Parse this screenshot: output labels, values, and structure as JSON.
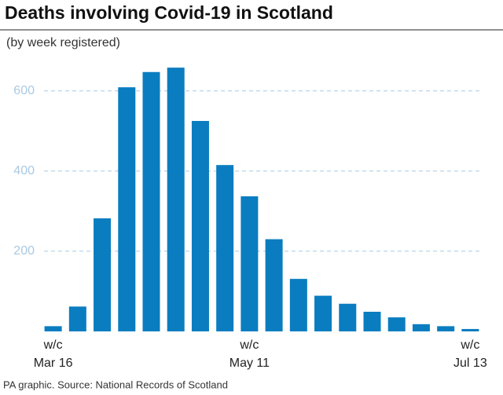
{
  "chart_data": {
    "type": "bar",
    "title": "Deaths involving Covid-19 in Scotland",
    "subtitle": "(by week registered)",
    "source": "PA graphic. Source: National Records of Scotland",
    "categories": [
      "w/c\nMar 16",
      null,
      null,
      null,
      null,
      null,
      null,
      null,
      "w/c\nMay 11",
      null,
      null,
      null,
      null,
      null,
      null,
      null,
      null,
      "w/c\nJul 13"
    ],
    "values": [
      13,
      62,
      282,
      609,
      647,
      658,
      525,
      415,
      337,
      230,
      131,
      89,
      69,
      49,
      35,
      18,
      13,
      6
    ],
    "color": "#0a7dc0",
    "ylim": [
      0,
      670
    ],
    "yticks": [
      200,
      400,
      600
    ],
    "grid": true
  }
}
